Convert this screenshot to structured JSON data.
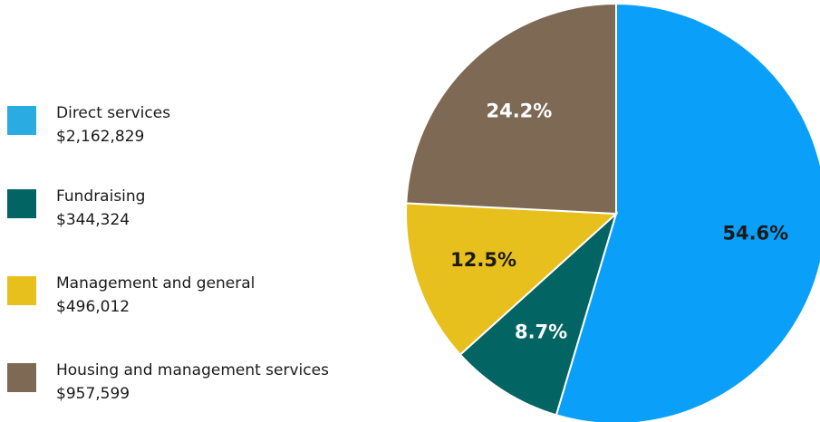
{
  "chart_data": {
    "type": "pie",
    "slices": [
      {
        "name": "Direct services",
        "amount": "$2,162,829",
        "value": 54.6,
        "pct_label": "54.6%",
        "color": "#0aa0fa",
        "label_color": "#1a1a1a",
        "swatch_color": "#2aace2"
      },
      {
        "name": "Fundraising",
        "amount": "$344,324",
        "value": 8.7,
        "pct_label": "8.7%",
        "color": "#026463",
        "label_color": "#ffffff",
        "swatch_color": "#026463"
      },
      {
        "name": "Management and general",
        "amount": "$496,012",
        "value": 12.5,
        "pct_label": "12.5%",
        "color": "#e8c01e",
        "label_color": "#1a1a1a",
        "swatch_color": "#e8c01e"
      },
      {
        "name": "Housing and management services",
        "amount": "$957,599",
        "value": 24.2,
        "pct_label": "24.2%",
        "color": "#7e6955",
        "label_color": "#ffffff",
        "swatch_color": "#7e6955"
      }
    ],
    "start_angle_deg": 0,
    "direction": "clockwise",
    "legend_position": "left"
  }
}
